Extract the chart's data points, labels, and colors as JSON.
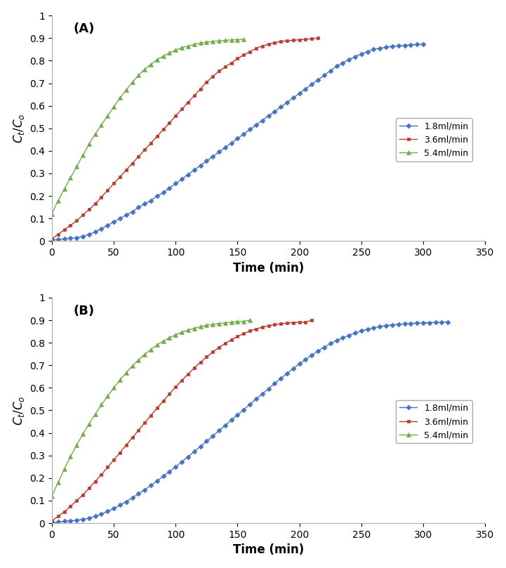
{
  "panel_A": {
    "label": "(A)",
    "series": [
      {
        "label": "1.8ml/min",
        "color": "#4472C4",
        "marker": "D",
        "markersize": 3.5,
        "t_points": [
          0,
          5,
          10,
          15,
          20,
          25,
          30,
          35,
          40,
          45,
          50,
          55,
          60,
          65,
          70,
          75,
          80,
          85,
          90,
          95,
          100,
          105,
          110,
          115,
          120,
          125,
          130,
          135,
          140,
          145,
          150,
          155,
          160,
          165,
          170,
          175,
          180,
          185,
          190,
          195,
          200,
          205,
          210,
          215,
          220,
          225,
          230,
          235,
          240,
          245,
          250,
          255,
          260,
          265,
          270,
          275,
          280,
          285,
          290,
          295,
          300
        ],
        "y_points": [
          0.005,
          0.007,
          0.01,
          0.012,
          0.015,
          0.02,
          0.03,
          0.04,
          0.055,
          0.07,
          0.085,
          0.1,
          0.115,
          0.13,
          0.15,
          0.165,
          0.18,
          0.2,
          0.215,
          0.235,
          0.255,
          0.275,
          0.295,
          0.315,
          0.335,
          0.355,
          0.375,
          0.395,
          0.415,
          0.435,
          0.455,
          0.475,
          0.495,
          0.515,
          0.535,
          0.555,
          0.575,
          0.595,
          0.615,
          0.635,
          0.655,
          0.675,
          0.695,
          0.715,
          0.735,
          0.755,
          0.775,
          0.79,
          0.805,
          0.818,
          0.83,
          0.84,
          0.85,
          0.855,
          0.86,
          0.863,
          0.866,
          0.868,
          0.87,
          0.872,
          0.873
        ]
      },
      {
        "label": "3.6ml/min",
        "color": "#C0392B",
        "marker": "s",
        "markersize": 3.5,
        "t_points": [
          0,
          5,
          10,
          15,
          20,
          25,
          30,
          35,
          40,
          45,
          50,
          55,
          60,
          65,
          70,
          75,
          80,
          85,
          90,
          95,
          100,
          105,
          110,
          115,
          120,
          125,
          130,
          135,
          140,
          145,
          150,
          155,
          160,
          165,
          170,
          175,
          180,
          185,
          190,
          195,
          200,
          205,
          210,
          215
        ],
        "y_points": [
          0.01,
          0.03,
          0.05,
          0.07,
          0.09,
          0.115,
          0.14,
          0.165,
          0.195,
          0.225,
          0.255,
          0.285,
          0.315,
          0.345,
          0.375,
          0.405,
          0.435,
          0.465,
          0.495,
          0.525,
          0.555,
          0.585,
          0.615,
          0.645,
          0.675,
          0.705,
          0.73,
          0.753,
          0.773,
          0.79,
          0.81,
          0.825,
          0.84,
          0.855,
          0.865,
          0.873,
          0.88,
          0.885,
          0.888,
          0.89,
          0.893,
          0.895,
          0.897,
          0.9
        ]
      },
      {
        "label": "5.4ml/min",
        "color": "#70AD47",
        "marker": "^",
        "markersize": 4,
        "t_points": [
          0,
          5,
          10,
          15,
          20,
          25,
          30,
          35,
          40,
          45,
          50,
          55,
          60,
          65,
          70,
          75,
          80,
          85,
          90,
          95,
          100,
          105,
          110,
          115,
          120,
          125,
          130,
          135,
          140,
          145,
          150,
          155
        ],
        "y_points": [
          0.12,
          0.18,
          0.23,
          0.28,
          0.33,
          0.38,
          0.43,
          0.475,
          0.515,
          0.555,
          0.595,
          0.635,
          0.67,
          0.705,
          0.735,
          0.762,
          0.784,
          0.805,
          0.82,
          0.835,
          0.847,
          0.858,
          0.865,
          0.872,
          0.878,
          0.882,
          0.885,
          0.888,
          0.89,
          0.892,
          0.893,
          0.894
        ]
      }
    ],
    "xlabel": "Time (min)",
    "ylabel": "$C_t/C_o$",
    "xlim": [
      0,
      350
    ],
    "ylim": [
      0,
      1.0
    ],
    "xticks": [
      0,
      50,
      100,
      150,
      200,
      250,
      300,
      350
    ],
    "yticks": [
      0,
      0.1,
      0.2,
      0.3,
      0.4,
      0.5,
      0.6,
      0.7,
      0.8,
      0.9,
      1
    ]
  },
  "panel_B": {
    "label": "(B)",
    "series": [
      {
        "label": "1.8ml/min",
        "color": "#4472C4",
        "marker": "D",
        "markersize": 3.5,
        "t_points": [
          0,
          5,
          10,
          15,
          20,
          25,
          30,
          35,
          40,
          45,
          50,
          55,
          60,
          65,
          70,
          75,
          80,
          85,
          90,
          95,
          100,
          105,
          110,
          115,
          120,
          125,
          130,
          135,
          140,
          145,
          150,
          155,
          160,
          165,
          170,
          175,
          180,
          185,
          190,
          195,
          200,
          205,
          210,
          215,
          220,
          225,
          230,
          235,
          240,
          245,
          250,
          255,
          260,
          265,
          270,
          275,
          280,
          285,
          290,
          295,
          300,
          305,
          310,
          315,
          320
        ],
        "y_points": [
          0.003,
          0.005,
          0.008,
          0.01,
          0.013,
          0.017,
          0.022,
          0.03,
          0.04,
          0.052,
          0.065,
          0.08,
          0.095,
          0.112,
          0.13,
          0.148,
          0.167,
          0.187,
          0.208,
          0.228,
          0.25,
          0.272,
          0.294,
          0.317,
          0.34,
          0.363,
          0.386,
          0.41,
          0.433,
          0.457,
          0.48,
          0.503,
          0.527,
          0.55,
          0.573,
          0.596,
          0.619,
          0.642,
          0.664,
          0.685,
          0.706,
          0.726,
          0.745,
          0.763,
          0.78,
          0.796,
          0.81,
          0.822,
          0.833,
          0.843,
          0.853,
          0.86,
          0.866,
          0.872,
          0.876,
          0.879,
          0.882,
          0.884,
          0.886,
          0.887,
          0.888,
          0.889,
          0.89,
          0.891,
          0.892
        ]
      },
      {
        "label": "3.6ml/min",
        "color": "#C0392B",
        "marker": "s",
        "markersize": 3.5,
        "t_points": [
          0,
          5,
          10,
          15,
          20,
          25,
          30,
          35,
          40,
          45,
          50,
          55,
          60,
          65,
          70,
          75,
          80,
          85,
          90,
          95,
          100,
          105,
          110,
          115,
          120,
          125,
          130,
          135,
          140,
          145,
          150,
          155,
          160,
          165,
          170,
          175,
          180,
          185,
          190,
          195,
          200,
          205,
          210
        ],
        "y_points": [
          0.01,
          0.03,
          0.05,
          0.075,
          0.1,
          0.125,
          0.155,
          0.185,
          0.215,
          0.248,
          0.28,
          0.313,
          0.346,
          0.379,
          0.412,
          0.445,
          0.478,
          0.51,
          0.542,
          0.573,
          0.604,
          0.633,
          0.661,
          0.688,
          0.713,
          0.737,
          0.759,
          0.779,
          0.797,
          0.813,
          0.828,
          0.841,
          0.852,
          0.861,
          0.869,
          0.875,
          0.88,
          0.884,
          0.887,
          0.889,
          0.891,
          0.892,
          0.9
        ]
      },
      {
        "label": "5.4ml/min",
        "color": "#70AD47",
        "marker": "^",
        "markersize": 4,
        "t_points": [
          0,
          5,
          10,
          15,
          20,
          25,
          30,
          35,
          40,
          45,
          50,
          55,
          60,
          65,
          70,
          75,
          80,
          85,
          90,
          95,
          100,
          105,
          110,
          115,
          120,
          125,
          130,
          135,
          140,
          145,
          150,
          155,
          160
        ],
        "y_points": [
          0.12,
          0.18,
          0.24,
          0.295,
          0.345,
          0.395,
          0.44,
          0.483,
          0.525,
          0.563,
          0.6,
          0.635,
          0.667,
          0.697,
          0.724,
          0.749,
          0.77,
          0.79,
          0.807,
          0.822,
          0.835,
          0.847,
          0.856,
          0.864,
          0.871,
          0.877,
          0.881,
          0.885,
          0.888,
          0.891,
          0.893,
          0.895,
          0.9
        ]
      }
    ],
    "xlabel": "Time (min)",
    "ylabel": "$C_t/C_o$",
    "xlim": [
      0,
      350
    ],
    "ylim": [
      0,
      1.0
    ],
    "xticks": [
      0,
      50,
      100,
      150,
      200,
      250,
      300,
      350
    ],
    "yticks": [
      0,
      0.1,
      0.2,
      0.3,
      0.4,
      0.5,
      0.6,
      0.7,
      0.8,
      0.9,
      1
    ]
  },
  "figure_bg": "#FFFFFF",
  "axes_bg": "#FFFFFF",
  "spine_color": "#AAAAAA",
  "legend_fontsize": 9,
  "axis_label_fontsize": 12,
  "tick_label_fontsize": 10,
  "panel_label_fontsize": 13
}
